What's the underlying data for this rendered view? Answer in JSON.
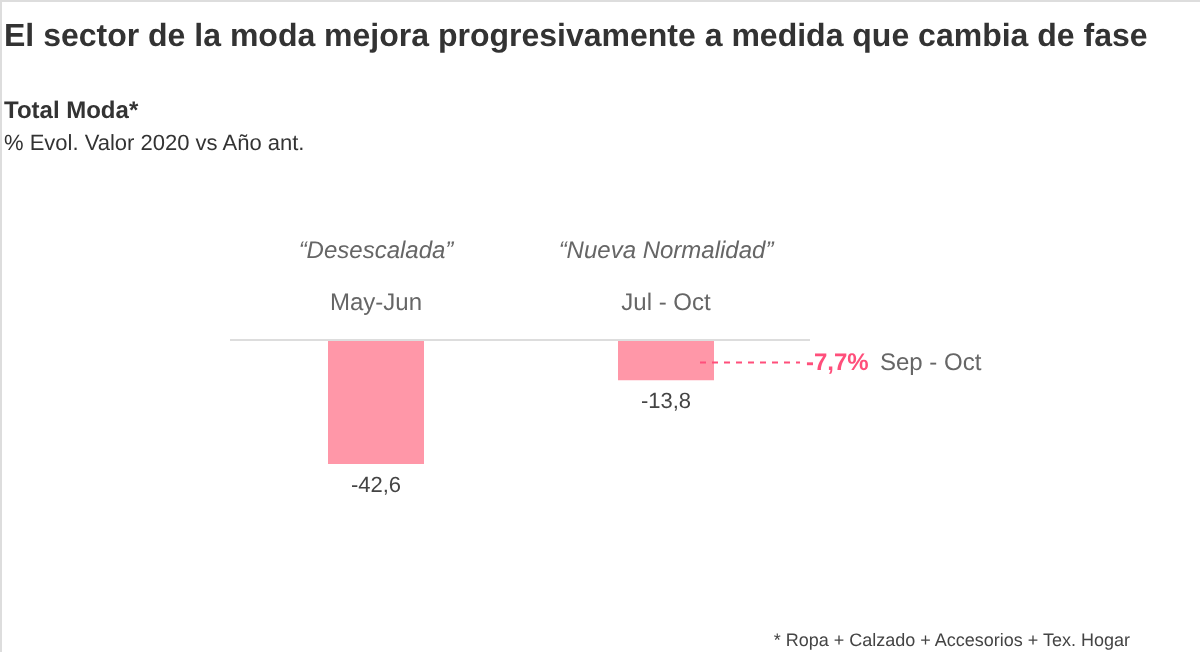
{
  "chart_data": {
    "type": "bar",
    "title": "El sector de la moda mejora progresivamente a medida que cambia de fase",
    "subtitle": "Total Moda*",
    "categories": [
      "May-Jun",
      "Jul - Oct"
    ],
    "values": [
      -42.6,
      -13.8
    ],
    "color": "#ff97a8",
    "data_labels": true,
    "value_labels": [
      "-42,6",
      "-13,8"
    ],
    "tick_labels": "x",
    "ref_lines": [
      {
        "axis": "y",
        "value": -7.7,
        "label": "-7,7%",
        "color": "#ff4f7b",
        "line_style": "dashed"
      }
    ],
    "annotations": [
      "% Evol. Valor  2020 vs Año ant.",
      "“Desescalada”",
      "“Nueva Normalidad”",
      "Sep - Oct",
      "* Ropa +  Calzado + Accesorios +  Tex. Hogar"
    ]
  }
}
